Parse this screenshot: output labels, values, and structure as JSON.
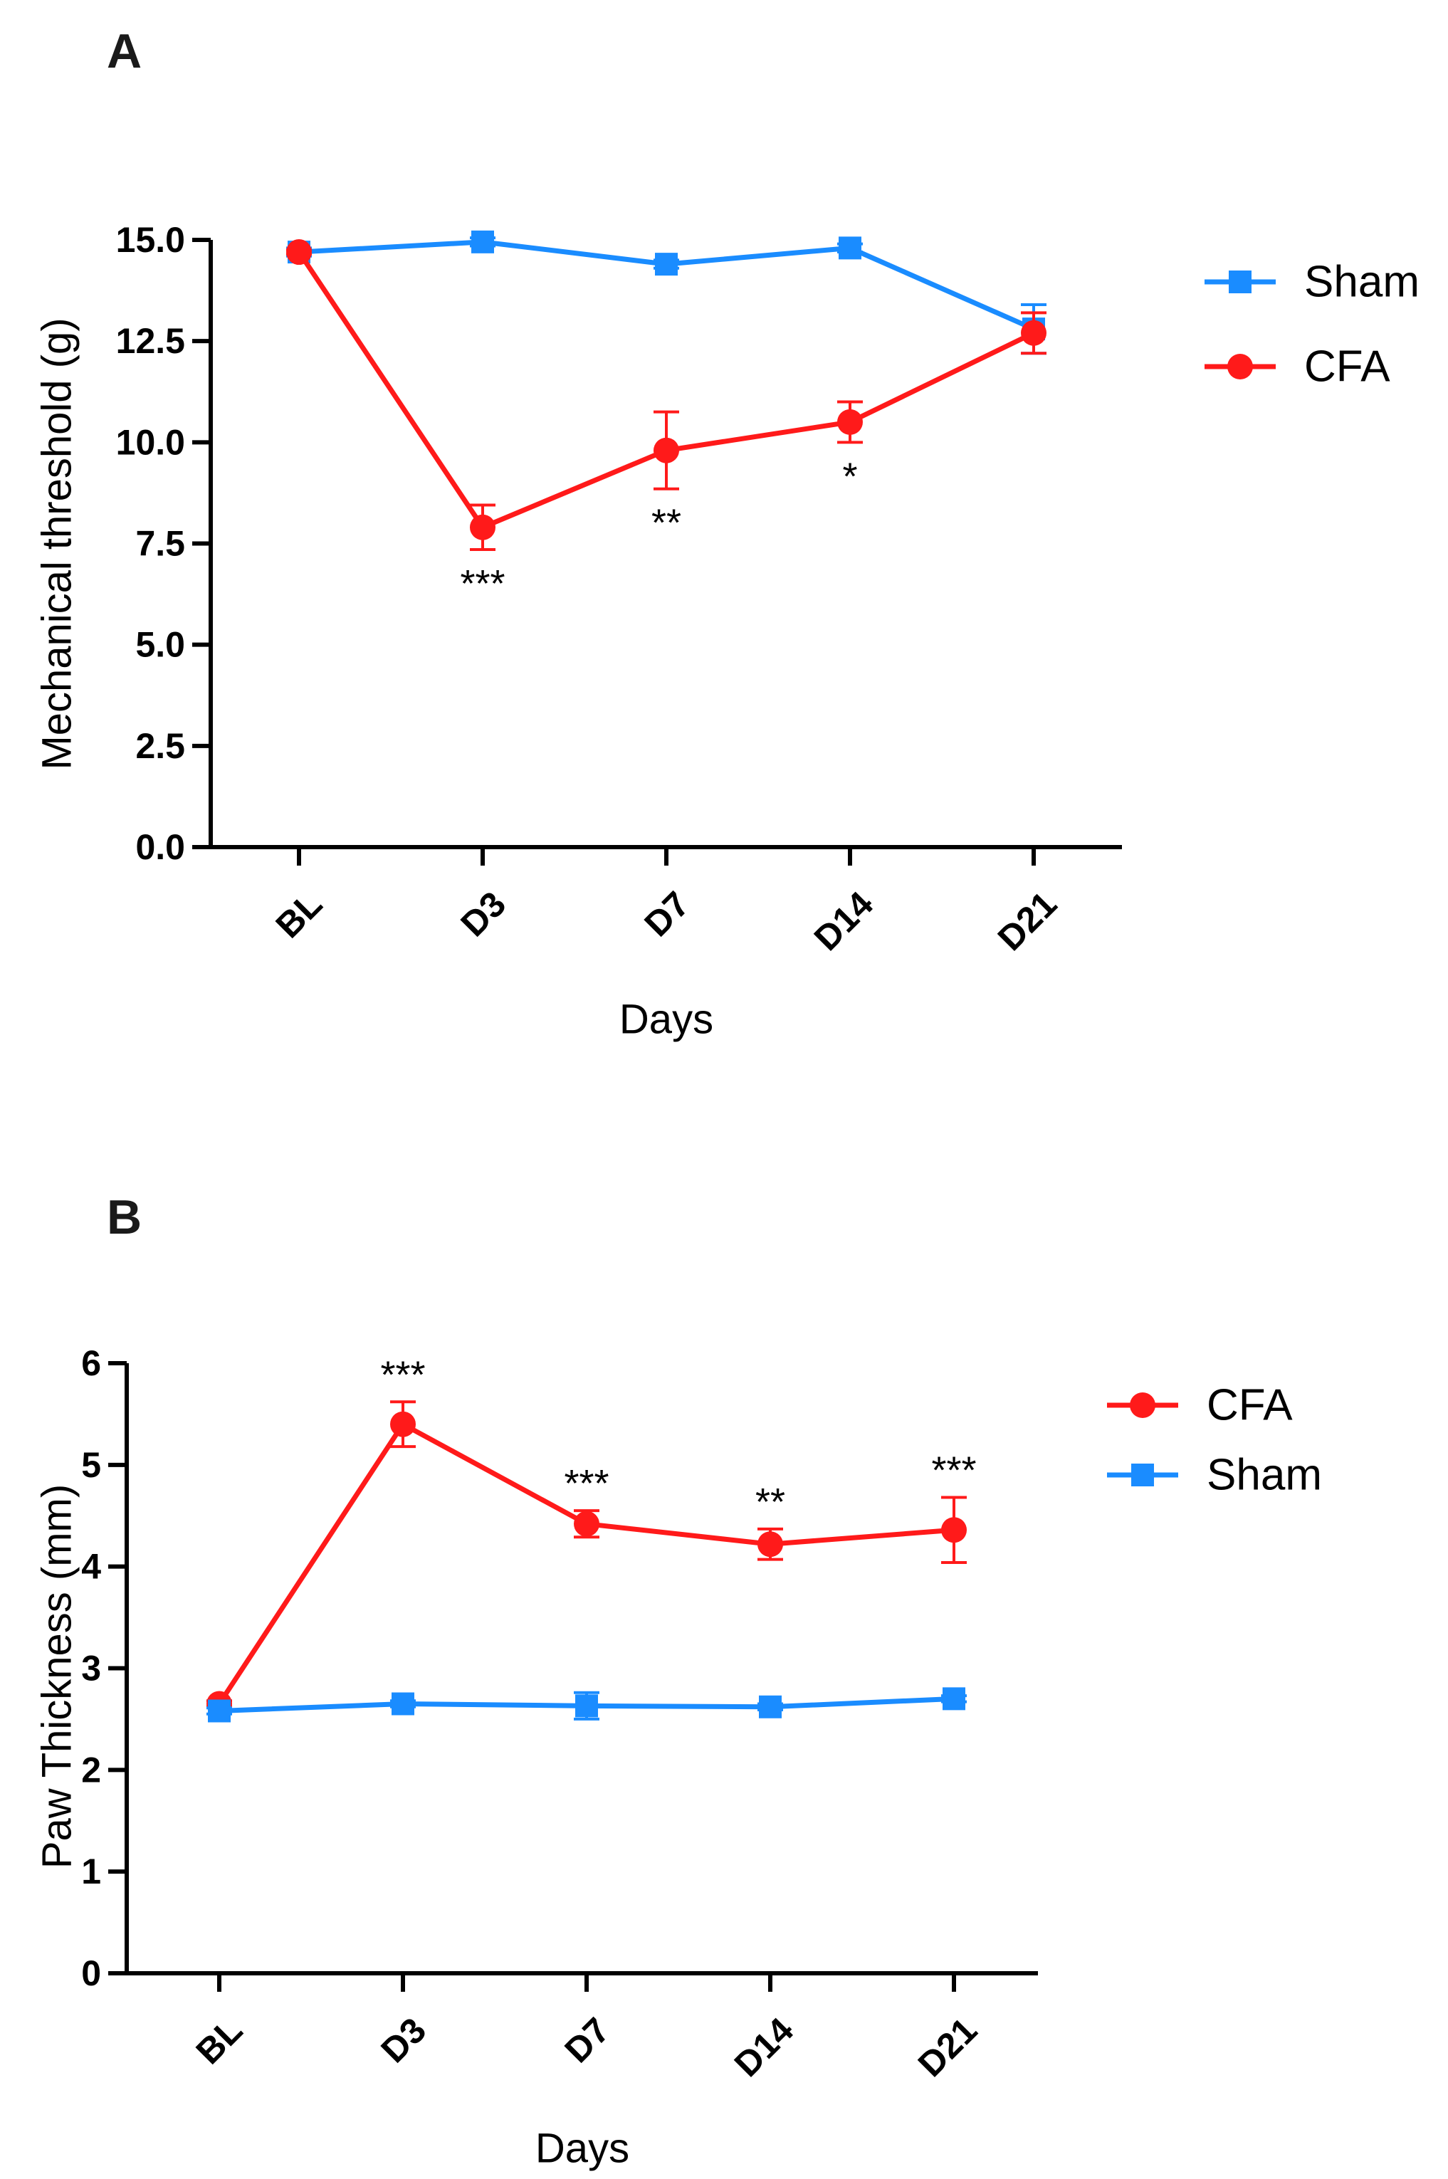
{
  "colors": {
    "Sham": "#1a8cff",
    "CFA": "#ff1a1a"
  },
  "chart_data": [
    {
      "panel": "A",
      "type": "line",
      "title": "",
      "xlabel": "Days",
      "ylabel": "Mechanical threshold (g)",
      "categories": [
        "BL",
        "D3",
        "D7",
        "D14",
        "D21"
      ],
      "ylim": [
        0,
        15
      ],
      "yticks": [
        "0.0",
        "2.5",
        "5.0",
        "7.5",
        "10.0",
        "12.5",
        "15.0"
      ],
      "legend": [
        "Sham",
        "CFA"
      ],
      "series": [
        {
          "name": "Sham",
          "marker": "square",
          "values": [
            14.7,
            14.95,
            14.4,
            14.8,
            12.8
          ],
          "errors": [
            0.1,
            0.1,
            0.1,
            0.1,
            0.6
          ]
        },
        {
          "name": "CFA",
          "marker": "circle",
          "values": [
            14.7,
            7.9,
            9.8,
            10.5,
            12.7
          ],
          "errors": [
            0.05,
            0.55,
            0.95,
            0.5,
            0.5
          ]
        }
      ],
      "annotations": [
        {
          "category": "D3",
          "text": "***"
        },
        {
          "category": "D7",
          "text": "**"
        },
        {
          "category": "D14",
          "text": "*"
        }
      ]
    },
    {
      "panel": "B",
      "type": "line",
      "title": "",
      "xlabel": "Days",
      "ylabel": "Paw Thickness  (mm)",
      "categories": [
        "BL",
        "D3",
        "D7",
        "D14",
        "D21"
      ],
      "ylim": [
        0,
        6
      ],
      "yticks": [
        "0",
        "1",
        "2",
        "3",
        "4",
        "5",
        "6"
      ],
      "legend": [
        "CFA",
        "Sham"
      ],
      "series": [
        {
          "name": "CFA",
          "marker": "circle",
          "values": [
            2.65,
            5.4,
            4.42,
            4.22,
            4.36
          ],
          "errors": [
            0.03,
            0.22,
            0.13,
            0.15,
            0.32
          ]
        },
        {
          "name": "Sham",
          "marker": "square",
          "values": [
            2.58,
            2.65,
            2.63,
            2.62,
            2.7
          ],
          "errors": [
            0.03,
            0.03,
            0.13,
            0.03,
            0.03
          ]
        }
      ],
      "annotations": [
        {
          "category": "D3",
          "text": "***"
        },
        {
          "category": "D7",
          "text": "***"
        },
        {
          "category": "D14",
          "text": "**"
        },
        {
          "category": "D21",
          "text": "***"
        }
      ]
    }
  ]
}
